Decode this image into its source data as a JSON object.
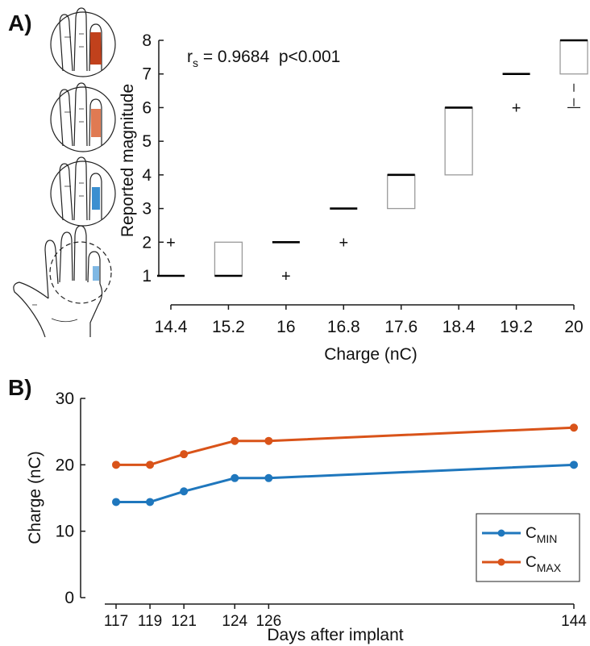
{
  "panels": {
    "a_label": "A)",
    "b_label": "B)"
  },
  "colors": {
    "cmin": "#1f77bd",
    "cmax": "#d95319",
    "finger_dark_red": "#c1411c",
    "finger_light_red": "#e07a52",
    "finger_blue": "#3b8fd0",
    "finger_light_blue": "#7fb8e4",
    "box": "#9a9a9a",
    "axis": "#1a1a1a"
  },
  "chart_data": [
    {
      "id": "A",
      "type": "box",
      "xlabel": "Charge (nC)",
      "ylabel": "Reported magnitude",
      "annotation": {
        "r_prefix": "r",
        "r_sub": "s",
        "text": " = 0.9684  p<0.001"
      },
      "categories": [
        "14.4",
        "15.2",
        "16",
        "16.8",
        "17.6",
        "18.4",
        "19.2",
        "20"
      ],
      "ylim": [
        1,
        8
      ],
      "yticks": [
        1,
        2,
        3,
        4,
        5,
        6,
        7,
        8
      ],
      "boxes": [
        {
          "median": 1,
          "q1": 1,
          "q3": 1,
          "whisker_low": 1,
          "whisker_high": 1,
          "outliers": [
            2
          ]
        },
        {
          "median": 1,
          "q1": 1,
          "q3": 2,
          "whisker_low": 1,
          "whisker_high": 2,
          "outliers": []
        },
        {
          "median": 2,
          "q1": 2,
          "q3": 2,
          "whisker_low": 2,
          "whisker_high": 2,
          "outliers": [
            1
          ]
        },
        {
          "median": 3,
          "q1": 3,
          "q3": 3,
          "whisker_low": 3,
          "whisker_high": 3,
          "outliers": [
            2
          ]
        },
        {
          "median": 4,
          "q1": 3,
          "q3": 4,
          "whisker_low": 3,
          "whisker_high": 4,
          "outliers": []
        },
        {
          "median": 6,
          "q1": 4,
          "q3": 6,
          "whisker_low": 4,
          "whisker_high": 6,
          "outliers": []
        },
        {
          "median": 7,
          "q1": 7,
          "q3": 7,
          "whisker_low": 7,
          "whisker_high": 7,
          "outliers": [
            6
          ]
        },
        {
          "median": 8,
          "q1": 7,
          "q3": 8,
          "whisker_low": 6,
          "whisker_high": 8,
          "outliers": []
        }
      ]
    },
    {
      "id": "B",
      "type": "line",
      "xlabel": "Days after implant",
      "ylabel": "Charge (nC)",
      "x": [
        117,
        119,
        121,
        124,
        126,
        144
      ],
      "xticks": [
        "117",
        "119",
        "121",
        "124",
        "126",
        "144"
      ],
      "ylim": [
        0,
        30
      ],
      "yticks": [
        0,
        10,
        20,
        30
      ],
      "legend_position": "bottom-right",
      "series": [
        {
          "name": "C",
          "sub": "MIN",
          "color_key": "cmin",
          "values": [
            14.4,
            14.4,
            16,
            18,
            18,
            20
          ]
        },
        {
          "name": "C",
          "sub": "MAX",
          "color_key": "cmax",
          "values": [
            20,
            20,
            21.6,
            23.6,
            23.6,
            25.6
          ]
        }
      ]
    }
  ]
}
